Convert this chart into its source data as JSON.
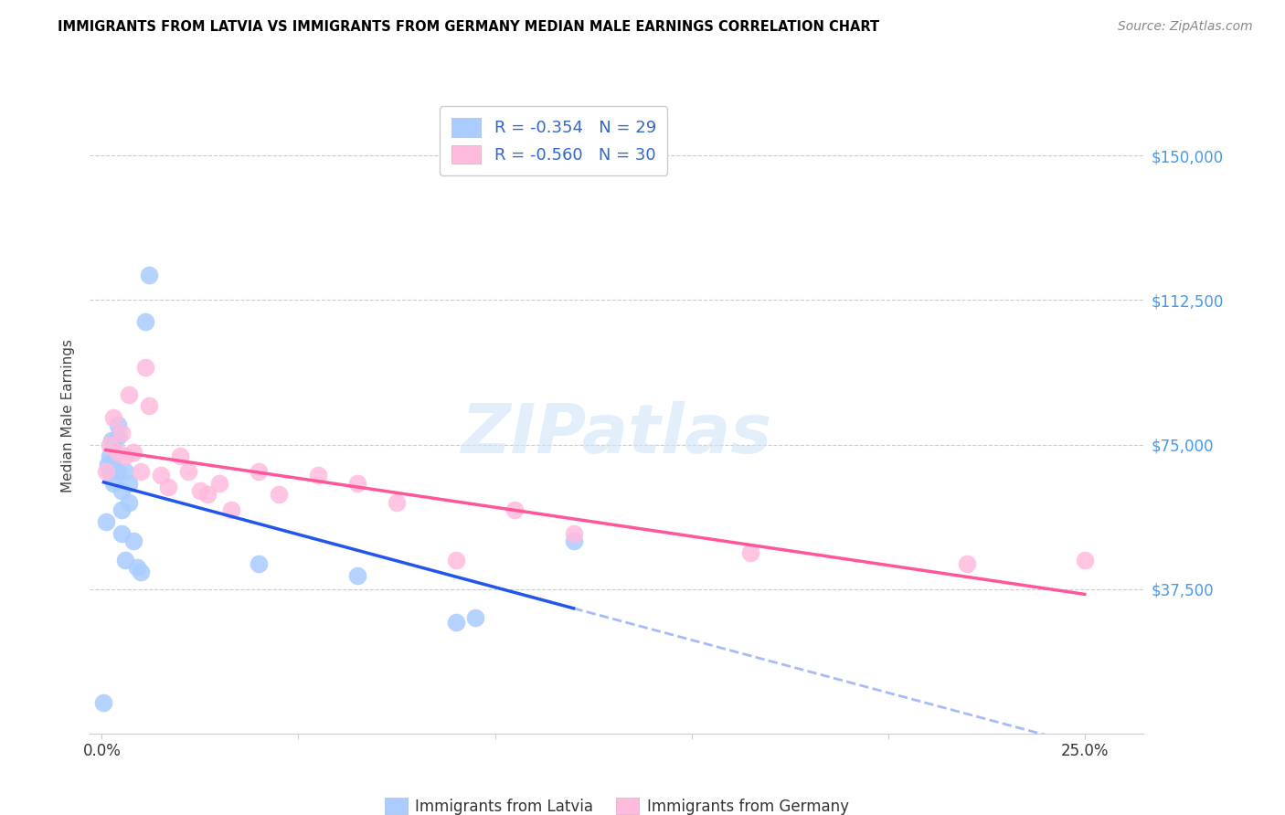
{
  "title": "IMMIGRANTS FROM LATVIA VS IMMIGRANTS FROM GERMANY MEDIAN MALE EARNINGS CORRELATION CHART",
  "source": "Source: ZipAtlas.com",
  "ylabel": "Median Male Earnings",
  "y_ticks": [
    0,
    37500,
    75000,
    112500,
    150000
  ],
  "y_tick_labels": [
    "",
    "$37,500",
    "$75,000",
    "$112,500",
    "$150,000"
  ],
  "y_lim": [
    0,
    165000
  ],
  "x_lim": [
    -0.003,
    0.265
  ],
  "x_ticks": [
    0.0,
    0.05,
    0.1,
    0.15,
    0.2,
    0.25
  ],
  "x_tick_labels": [
    "0.0%",
    "",
    "",
    "",
    "",
    "25.0%"
  ],
  "latvia_R": "-0.354",
  "latvia_N": "29",
  "germany_R": "-0.560",
  "germany_N": "30",
  "latvia_color": "#aaccff",
  "germany_color": "#ffbbdd",
  "latvia_line_color": "#2255ee",
  "germany_line_color": "#ff5599",
  "legend_text_color": "#3366cc",
  "y_label_color": "#4499ee",
  "watermark": "ZIPatlas",
  "watermark_color": "#d0e4f8",
  "latvia_x": [
    0.0005,
    0.001,
    0.0015,
    0.002,
    0.002,
    0.0025,
    0.003,
    0.003,
    0.003,
    0.004,
    0.004,
    0.004,
    0.005,
    0.005,
    0.005,
    0.006,
    0.006,
    0.007,
    0.007,
    0.008,
    0.009,
    0.01,
    0.011,
    0.012,
    0.04,
    0.065,
    0.09,
    0.095,
    0.12
  ],
  "latvia_y": [
    8000,
    55000,
    70000,
    72000,
    68000,
    76000,
    75000,
    70000,
    65000,
    80000,
    77000,
    68000,
    63000,
    58000,
    52000,
    68000,
    45000,
    65000,
    60000,
    50000,
    43000,
    42000,
    107000,
    119000,
    44000,
    41000,
    29000,
    30000,
    50000
  ],
  "germany_x": [
    0.001,
    0.002,
    0.003,
    0.004,
    0.005,
    0.006,
    0.007,
    0.008,
    0.01,
    0.011,
    0.012,
    0.015,
    0.017,
    0.02,
    0.022,
    0.025,
    0.027,
    0.03,
    0.033,
    0.04,
    0.045,
    0.055,
    0.065,
    0.075,
    0.09,
    0.105,
    0.12,
    0.165,
    0.22,
    0.25
  ],
  "germany_y": [
    68000,
    75000,
    82000,
    73000,
    78000,
    72000,
    88000,
    73000,
    68000,
    95000,
    85000,
    67000,
    64000,
    72000,
    68000,
    63000,
    62000,
    65000,
    58000,
    68000,
    62000,
    67000,
    65000,
    60000,
    45000,
    58000,
    52000,
    47000,
    44000,
    45000
  ]
}
